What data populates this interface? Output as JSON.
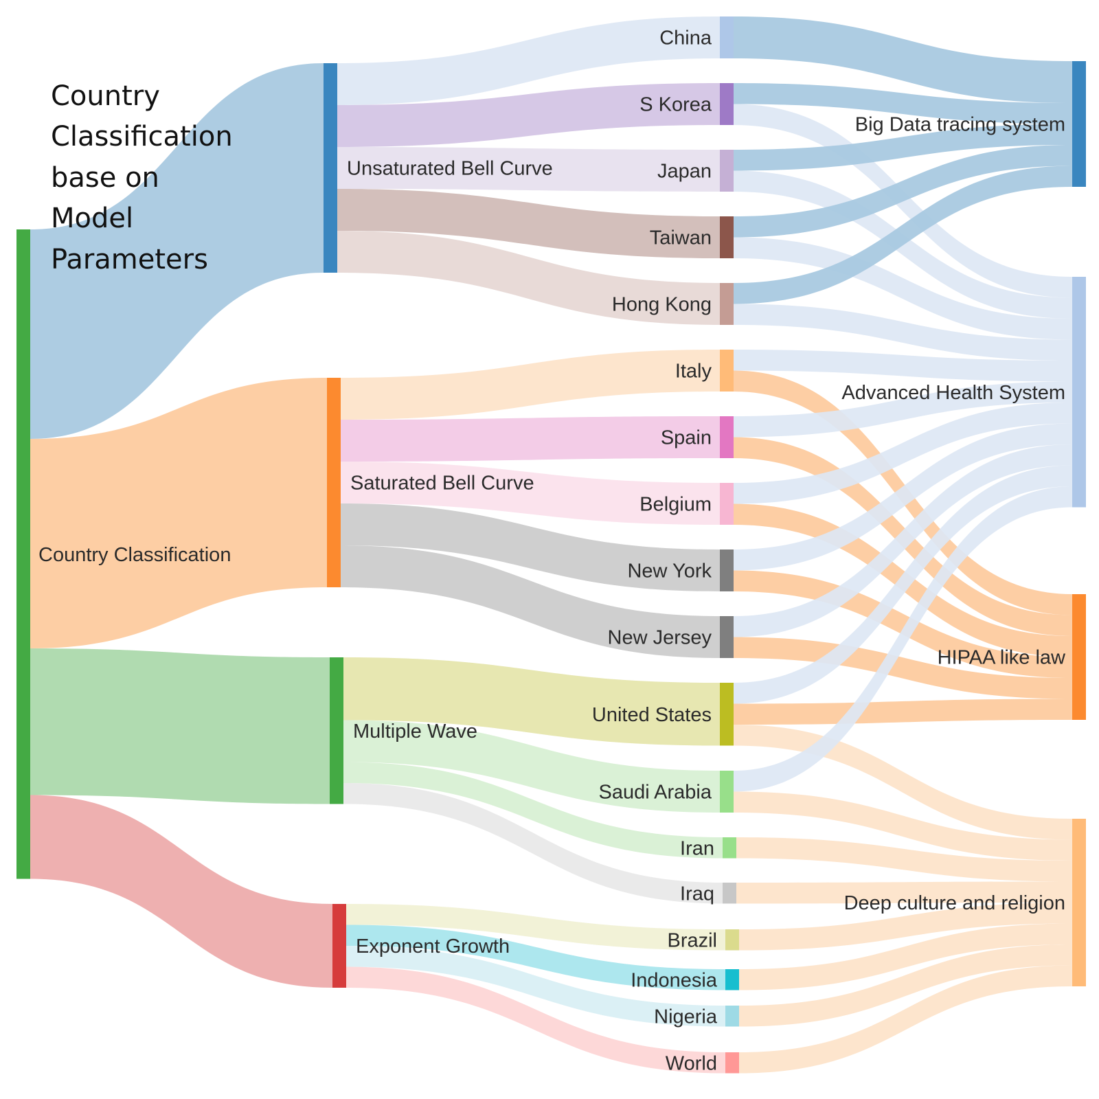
{
  "title_lines": [
    "Country",
    "Classification",
    "base on",
    "Model",
    "Parameters"
  ],
  "nodes": [
    {
      "id": "root",
      "label": "Country Classification",
      "color": "#44aa44"
    },
    {
      "id": "ubc",
      "label": "Unsaturated Bell Curve",
      "color": "#3a86bf"
    },
    {
      "id": "sbc",
      "label": "Saturated Bell Curve",
      "color": "#fc8a2f"
    },
    {
      "id": "mw",
      "label": "Multiple Wave",
      "color": "#44aa44"
    },
    {
      "id": "eg",
      "label": "Exponent Growth",
      "color": "#d63c3c"
    },
    {
      "id": "china",
      "label": "China",
      "color": "#aec7e8"
    },
    {
      "id": "skorea",
      "label": "S Korea",
      "color": "#9e7ac6"
    },
    {
      "id": "japan",
      "label": "Japan",
      "color": "#c5b0d5"
    },
    {
      "id": "taiwan",
      "label": "Taiwan",
      "color": "#8c564b"
    },
    {
      "id": "hongkong",
      "label": "Hong Kong",
      "color": "#c49c94"
    },
    {
      "id": "italy",
      "label": "Italy",
      "color": "#ffbb78"
    },
    {
      "id": "spain",
      "label": "Spain",
      "color": "#e377c2"
    },
    {
      "id": "belgium",
      "label": "Belgium",
      "color": "#f7b6d2"
    },
    {
      "id": "newyork",
      "label": "New York",
      "color": "#7f7f7f"
    },
    {
      "id": "newjersey",
      "label": "New Jersey",
      "color": "#7f7f7f"
    },
    {
      "id": "us",
      "label": "United States",
      "color": "#bcbd22"
    },
    {
      "id": "saudi",
      "label": "Saudi Arabia",
      "color": "#98df8a"
    },
    {
      "id": "iran",
      "label": "Iran",
      "color": "#98df8a"
    },
    {
      "id": "iraq",
      "label": "Iraq",
      "color": "#c7c7c7"
    },
    {
      "id": "brazil",
      "label": "Brazil",
      "color": "#dbdb8d"
    },
    {
      "id": "indonesia",
      "label": "Indonesia",
      "color": "#17becf"
    },
    {
      "id": "nigeria",
      "label": "Nigeria",
      "color": "#9edae5"
    },
    {
      "id": "world",
      "label": "World",
      "color": "#ff9896"
    },
    {
      "id": "bigdata",
      "label": "Big Data tracing system",
      "color": "#3a86bf"
    },
    {
      "id": "health",
      "label": "Advanced Health System",
      "color": "#aec7e8"
    },
    {
      "id": "hipaa",
      "label": "HIPAA like law",
      "color": "#fc8a2f"
    },
    {
      "id": "culture",
      "label": "Deep culture and religion",
      "color": "#ffbb78"
    }
  ],
  "links": [
    {
      "source": "root",
      "target": "ubc",
      "value": 5,
      "color": "#a6c8e0"
    },
    {
      "source": "root",
      "target": "sbc",
      "value": 5,
      "color": "#fdca9c"
    },
    {
      "source": "root",
      "target": "mw",
      "value": 3.5,
      "color": "#a9d8a9"
    },
    {
      "source": "root",
      "target": "eg",
      "value": 2,
      "color": "#eda9a9"
    },
    {
      "source": "ubc",
      "target": "china",
      "value": 1,
      "color": "#dde7f4"
    },
    {
      "source": "ubc",
      "target": "skorea",
      "value": 1,
      "color": "#d3c3e4"
    },
    {
      "source": "ubc",
      "target": "japan",
      "value": 1,
      "color": "#e6dfee"
    },
    {
      "source": "ubc",
      "target": "taiwan",
      "value": 1,
      "color": "#cfbab5"
    },
    {
      "source": "ubc",
      "target": "hongkong",
      "value": 1,
      "color": "#e6d7d4"
    },
    {
      "source": "sbc",
      "target": "italy",
      "value": 1,
      "color": "#fde3c9"
    },
    {
      "source": "sbc",
      "target": "spain",
      "value": 1,
      "color": "#f2c8e5"
    },
    {
      "source": "sbc",
      "target": "belgium",
      "value": 1,
      "color": "#fbe1ec"
    },
    {
      "source": "sbc",
      "target": "newyork",
      "value": 1,
      "color": "#cbcbcb"
    },
    {
      "source": "sbc",
      "target": "newjersey",
      "value": 1,
      "color": "#cbcbcb"
    },
    {
      "source": "mw",
      "target": "us",
      "value": 1.5,
      "color": "#e5e5aa"
    },
    {
      "source": "mw",
      "target": "saudi",
      "value": 1,
      "color": "#d7f0d2"
    },
    {
      "source": "mw",
      "target": "iran",
      "value": 0.5,
      "color": "#d7f0d2"
    },
    {
      "source": "mw",
      "target": "iraq",
      "value": 0.5,
      "color": "#e8e8e8"
    },
    {
      "source": "eg",
      "target": "brazil",
      "value": 0.5,
      "color": "#f1f1d4"
    },
    {
      "source": "eg",
      "target": "indonesia",
      "value": 0.5,
      "color": "#a6e5ed"
    },
    {
      "source": "eg",
      "target": "nigeria",
      "value": 0.5,
      "color": "#d8eff4"
    },
    {
      "source": "eg",
      "target": "world",
      "value": 0.5,
      "color": "#fdd5d5"
    },
    {
      "source": "china",
      "target": "bigdata",
      "value": 1,
      "color": "#a6c8e0"
    },
    {
      "source": "skorea",
      "target": "bigdata",
      "value": 0.5,
      "color": "#a6c8e0"
    },
    {
      "source": "skorea",
      "target": "health",
      "value": 0.5,
      "color": "#dde7f4"
    },
    {
      "source": "japan",
      "target": "bigdata",
      "value": 0.5,
      "color": "#a6c8e0"
    },
    {
      "source": "japan",
      "target": "health",
      "value": 0.5,
      "color": "#dde7f4"
    },
    {
      "source": "taiwan",
      "target": "bigdata",
      "value": 0.5,
      "color": "#a6c8e0"
    },
    {
      "source": "taiwan",
      "target": "health",
      "value": 0.5,
      "color": "#dde7f4"
    },
    {
      "source": "hongkong",
      "target": "bigdata",
      "value": 0.5,
      "color": "#a6c8e0"
    },
    {
      "source": "hongkong",
      "target": "health",
      "value": 0.5,
      "color": "#dde7f4"
    },
    {
      "source": "italy",
      "target": "health",
      "value": 0.5,
      "color": "#dde7f4"
    },
    {
      "source": "italy",
      "target": "hipaa",
      "value": 0.5,
      "color": "#fdca9c"
    },
    {
      "source": "spain",
      "target": "health",
      "value": 0.5,
      "color": "#dde7f4"
    },
    {
      "source": "spain",
      "target": "hipaa",
      "value": 0.5,
      "color": "#fdca9c"
    },
    {
      "source": "belgium",
      "target": "health",
      "value": 0.5,
      "color": "#dde7f4"
    },
    {
      "source": "belgium",
      "target": "hipaa",
      "value": 0.5,
      "color": "#fdca9c"
    },
    {
      "source": "newyork",
      "target": "health",
      "value": 0.5,
      "color": "#dde7f4"
    },
    {
      "source": "newyork",
      "target": "hipaa",
      "value": 0.5,
      "color": "#fdca9c"
    },
    {
      "source": "newjersey",
      "target": "health",
      "value": 0.5,
      "color": "#dde7f4"
    },
    {
      "source": "newjersey",
      "target": "hipaa",
      "value": 0.5,
      "color": "#fdca9c"
    },
    {
      "source": "us",
      "target": "health",
      "value": 0.5,
      "color": "#dde7f4"
    },
    {
      "source": "us",
      "target": "hipaa",
      "value": 0.5,
      "color": "#fdca9c"
    },
    {
      "source": "us",
      "target": "culture",
      "value": 0.5,
      "color": "#fde3c9"
    },
    {
      "source": "saudi",
      "target": "health",
      "value": 0.5,
      "color": "#dde7f4"
    },
    {
      "source": "saudi",
      "target": "culture",
      "value": 0.5,
      "color": "#fde3c9"
    },
    {
      "source": "iran",
      "target": "culture",
      "value": 0.5,
      "color": "#fde3c9"
    },
    {
      "source": "iraq",
      "target": "culture",
      "value": 0.5,
      "color": "#fde3c9"
    },
    {
      "source": "brazil",
      "target": "culture",
      "value": 0.5,
      "color": "#fde3c9"
    },
    {
      "source": "indonesia",
      "target": "culture",
      "value": 0.5,
      "color": "#fde3c9"
    },
    {
      "source": "nigeria",
      "target": "culture",
      "value": 0.5,
      "color": "#fde3c9"
    },
    {
      "source": "world",
      "target": "culture",
      "value": 0.5,
      "color": "#fde3c9"
    }
  ]
}
